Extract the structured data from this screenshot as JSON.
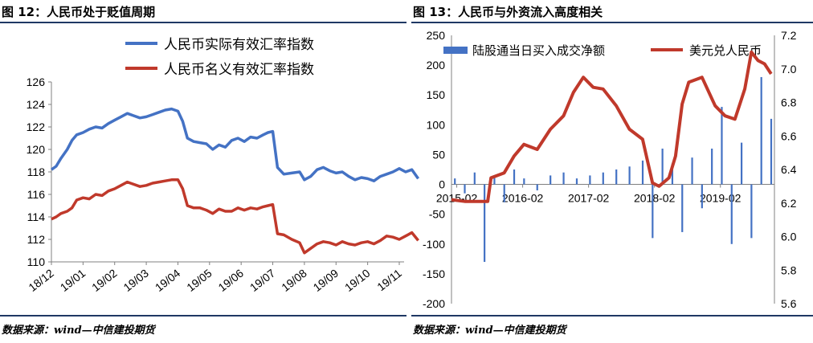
{
  "figures": [
    {
      "title": "图 12：人民币处于贬值周期",
      "source": "数据来源：wind—中信建投期货"
    },
    {
      "title": "图 13：人民币与外资流入高度相关",
      "source": "数据来源：wind—中信建投期货"
    }
  ],
  "chart_data": [
    {
      "type": "line",
      "title": "",
      "xlabel": "",
      "ylabel": "",
      "x_ticks": [
        "18/12",
        "19/01",
        "19/02",
        "19/03",
        "19/04",
        "19/05",
        "19/06",
        "19/07",
        "19/08",
        "19/09",
        "19/10",
        "19/11"
      ],
      "ylim": [
        110,
        126
      ],
      "y_ticks": [
        110,
        112,
        114,
        116,
        118,
        120,
        122,
        124,
        126
      ],
      "grid": false,
      "legend": "top",
      "series": [
        {
          "name": "人民币实际有效汇率指数",
          "color": "#4472c4",
          "x": [
            0,
            0.15,
            0.3,
            0.5,
            0.65,
            0.8,
            1.0,
            1.2,
            1.4,
            1.6,
            1.8,
            2.0,
            2.2,
            2.4,
            2.6,
            2.8,
            3.0,
            3.2,
            3.4,
            3.6,
            3.8,
            4.0,
            4.15,
            4.3,
            4.5,
            4.7,
            4.9,
            5.1,
            5.3,
            5.5,
            5.7,
            5.9,
            6.1,
            6.3,
            6.5,
            6.7,
            6.85,
            7.0,
            7.15,
            7.35,
            7.6,
            7.85,
            8.0,
            8.2,
            8.4,
            8.6,
            8.8,
            9.0,
            9.2,
            9.4,
            9.6,
            9.8,
            10.0,
            10.2,
            10.4,
            10.6,
            10.8,
            11.0,
            11.2,
            11.4,
            11.6
          ],
          "y": [
            118.2,
            118.5,
            119.2,
            120.0,
            120.8,
            121.3,
            121.5,
            121.8,
            122.0,
            121.9,
            122.3,
            122.6,
            122.9,
            123.2,
            123.0,
            122.8,
            122.9,
            123.1,
            123.3,
            123.5,
            123.6,
            123.4,
            122.5,
            121.0,
            120.7,
            120.6,
            120.5,
            120.0,
            120.4,
            120.2,
            120.8,
            121.0,
            120.7,
            121.1,
            121.0,
            121.3,
            121.5,
            121.6,
            118.4,
            117.8,
            117.9,
            118.0,
            117.3,
            117.6,
            118.2,
            118.4,
            118.1,
            117.9,
            118.0,
            117.6,
            117.3,
            117.5,
            117.4,
            117.2,
            117.6,
            117.8,
            118.0,
            118.3,
            118.0,
            118.2,
            117.4
          ]
        },
        {
          "name": "人民币名义有效汇率指数",
          "color": "#c0392b",
          "x": [
            0,
            0.15,
            0.3,
            0.5,
            0.65,
            0.8,
            1.0,
            1.2,
            1.4,
            1.6,
            1.8,
            2.0,
            2.2,
            2.4,
            2.6,
            2.8,
            3.0,
            3.2,
            3.4,
            3.6,
            3.8,
            4.0,
            4.15,
            4.3,
            4.5,
            4.7,
            4.9,
            5.1,
            5.3,
            5.5,
            5.7,
            5.9,
            6.1,
            6.3,
            6.5,
            6.7,
            6.85,
            7.0,
            7.15,
            7.35,
            7.6,
            7.85,
            8.0,
            8.2,
            8.4,
            8.6,
            8.8,
            9.0,
            9.2,
            9.4,
            9.6,
            9.8,
            10.0,
            10.2,
            10.4,
            10.6,
            10.8,
            11.0,
            11.2,
            11.4,
            11.6
          ],
          "y": [
            113.8,
            114.0,
            114.3,
            114.5,
            114.8,
            115.5,
            115.7,
            115.6,
            116.0,
            115.9,
            116.3,
            116.5,
            116.8,
            117.1,
            116.9,
            116.7,
            116.8,
            117.0,
            117.1,
            117.2,
            117.3,
            117.3,
            116.5,
            115.0,
            114.8,
            114.8,
            114.6,
            114.3,
            114.7,
            114.5,
            114.5,
            114.8,
            114.6,
            114.8,
            114.7,
            114.9,
            115.0,
            115.1,
            112.5,
            112.4,
            112.0,
            111.7,
            110.8,
            111.2,
            111.6,
            111.8,
            111.7,
            111.5,
            111.8,
            111.6,
            111.5,
            111.7,
            111.8,
            111.6,
            111.9,
            112.3,
            112.2,
            112.0,
            112.3,
            112.6,
            111.9
          ]
        }
      ]
    },
    {
      "type": "bar+line",
      "title": "",
      "xlabel": "",
      "ylabel": "",
      "x_ticks": [
        "2015-02",
        "2016-02",
        "2017-02",
        "2018-02",
        "2019-02"
      ],
      "xlim": [
        2015.0,
        2019.9
      ],
      "ylim_left": [
        -200,
        250
      ],
      "y_ticks_left": [
        -200,
        -150,
        -100,
        -50,
        0,
        50,
        100,
        150,
        200,
        250
      ],
      "ylim_right": [
        5.6,
        7.2
      ],
      "y_ticks_right": [
        "5.6",
        "5.8",
        "6.0",
        "6.2",
        "6.4",
        "6.6",
        "6.8",
        "7.0",
        "7.2"
      ],
      "grid": false,
      "legend": "top",
      "series": [
        {
          "name": "陆股通当日买入成交净额",
          "axis": "left",
          "kind": "bar",
          "color": "#4472c4",
          "x": [
            2015.05,
            2015.2,
            2015.35,
            2015.5,
            2015.65,
            2015.8,
            2015.95,
            2016.1,
            2016.3,
            2016.5,
            2016.7,
            2016.9,
            2017.1,
            2017.3,
            2017.5,
            2017.7,
            2017.9,
            2018.05,
            2018.2,
            2018.35,
            2018.5,
            2018.65,
            2018.8,
            2018.95,
            2019.1,
            2019.25,
            2019.4,
            2019.55,
            2019.7,
            2019.85
          ],
          "y": [
            10,
            -15,
            20,
            -130,
            15,
            -30,
            25,
            10,
            -10,
            15,
            20,
            10,
            15,
            20,
            25,
            30,
            40,
            -90,
            60,
            35,
            -80,
            45,
            -40,
            60,
            130,
            -100,
            70,
            -90,
            180,
            110
          ]
        },
        {
          "name": "美元兑人民币",
          "axis": "right",
          "kind": "line",
          "color": "#c0392b",
          "x": [
            2015.0,
            2015.2,
            2015.4,
            2015.55,
            2015.6,
            2015.8,
            2015.95,
            2016.1,
            2016.3,
            2016.5,
            2016.7,
            2016.85,
            2017.0,
            2017.15,
            2017.3,
            2017.5,
            2017.7,
            2017.9,
            2018.05,
            2018.15,
            2018.3,
            2018.4,
            2018.5,
            2018.6,
            2018.8,
            2019.0,
            2019.15,
            2019.3,
            2019.45,
            2019.55,
            2019.65,
            2019.75,
            2019.85
          ],
          "y": [
            6.22,
            6.21,
            6.21,
            6.21,
            6.35,
            6.38,
            6.48,
            6.55,
            6.52,
            6.64,
            6.72,
            6.86,
            6.95,
            6.89,
            6.88,
            6.78,
            6.64,
            6.58,
            6.32,
            6.3,
            6.35,
            6.48,
            6.79,
            6.92,
            6.95,
            6.78,
            6.72,
            6.7,
            6.88,
            7.1,
            7.05,
            7.03,
            6.97
          ]
        }
      ]
    }
  ]
}
